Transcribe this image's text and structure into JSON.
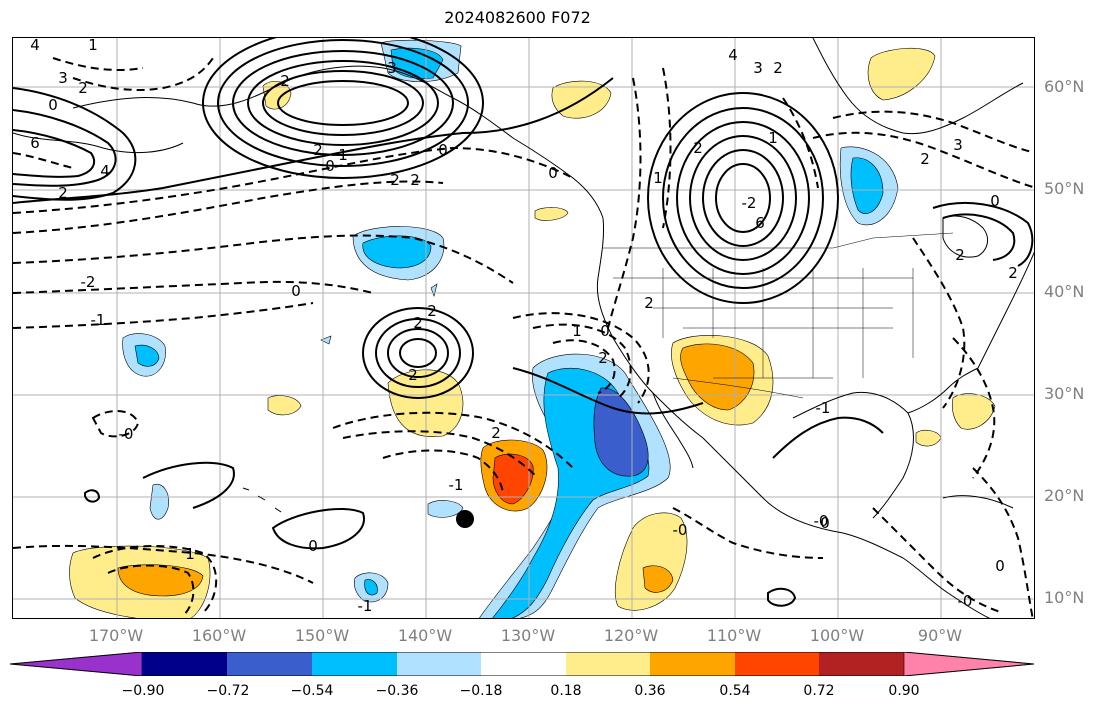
{
  "title": "2024082600 F072",
  "lat_labels": [
    "60°N",
    "50°N",
    "40°N",
    "30°N",
    "20°N",
    "10°N"
  ],
  "lon_labels": [
    "170°W",
    "160°W",
    "150°W",
    "140°W",
    "130°W",
    "120°W",
    "110°W",
    "100°W",
    "90°W"
  ],
  "contour_labels": [
    "4",
    "3",
    "2",
    "0",
    "6",
    "4",
    "2",
    "3",
    "2",
    "0",
    "1",
    "2",
    "2",
    "0",
    "2",
    "1",
    "0",
    "2",
    "2",
    "-2",
    "-1",
    "0",
    "2",
    "1",
    "-0",
    "-1",
    "1",
    "0",
    "2",
    "2",
    "-0",
    "-0",
    "2",
    "1",
    "0",
    "2",
    "1",
    "6",
    "-2",
    "4",
    "3",
    "2",
    "2",
    "3",
    "2",
    "0",
    "2",
    "-1",
    "0",
    "0",
    "-0",
    "-1"
  ],
  "colorbar": {
    "ticks": [
      "−0.90",
      "−0.72",
      "−0.54",
      "−0.36",
      "−0.18",
      "0.18",
      "0.36",
      "0.54",
      "0.72",
      "0.90"
    ],
    "bins": [
      {
        "color": "#9932cc"
      },
      {
        "color": "#00008b"
      },
      {
        "color": "#3a5fcd"
      },
      {
        "color": "#00bfff"
      },
      {
        "color": "#b0e2ff"
      },
      {
        "color": "#ffffff"
      },
      {
        "color": "#ffec8b"
      },
      {
        "color": "#ffa500"
      },
      {
        "color": "#ff4500"
      },
      {
        "color": "#b22222"
      },
      {
        "color": "#ff82ab"
      }
    ]
  }
}
